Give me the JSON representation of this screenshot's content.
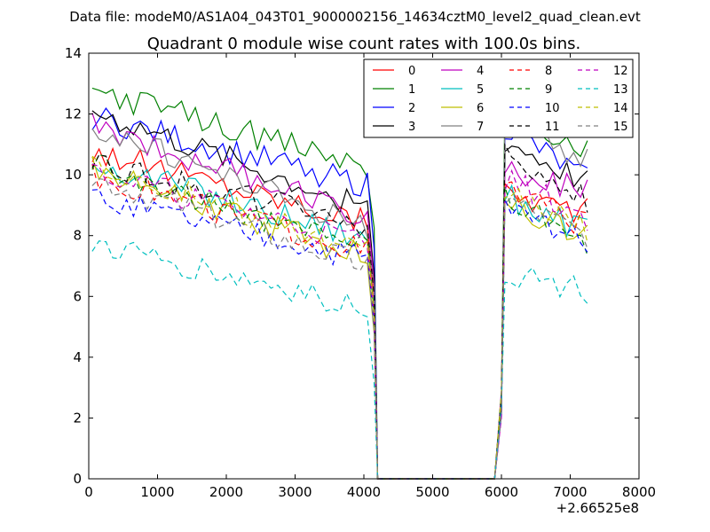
{
  "chart_data": {
    "type": "line",
    "suptitle": "Data file: modeM0/AS1A04_043T01_9000002156_14634cztM0_level2_quad_clean.evt",
    "title": "Quadrant 0 module wise count rates with 100.0s bins.",
    "xlabel": "",
    "ylabel": "",
    "xlim": [
      0,
      8000
    ],
    "ylim": [
      0,
      14
    ],
    "x_offset_label": "+2.66525e8",
    "xticks": [
      0,
      1000,
      2000,
      3000,
      4000,
      5000,
      6000,
      7000,
      8000
    ],
    "yticks": [
      0,
      2,
      4,
      6,
      8,
      10,
      12,
      14
    ],
    "grid": false,
    "legend_location": "top-right",
    "legend_columns": 4,
    "gap": [
      4200,
      5900
    ],
    "series": [
      {
        "name": "0",
        "color": "#ff0000",
        "dash": "solid",
        "level": 10.8,
        "drop": 2.4,
        "post": 9.4,
        "postSlope": -0.6
      },
      {
        "name": "1",
        "color": "#008000",
        "dash": "solid",
        "level": 12.8,
        "drop": 2.6,
        "post": 12.0,
        "postSlope": -1.3
      },
      {
        "name": "2",
        "color": "#0000ff",
        "dash": "solid",
        "level": 11.9,
        "drop": 2.3,
        "post": 11.6,
        "postSlope": -1.8
      },
      {
        "name": "3",
        "color": "#000000",
        "dash": "solid",
        "level": 12.1,
        "drop": 3.3,
        "post": 11.1,
        "postSlope": -1.4
      },
      {
        "name": "4",
        "color": "#bf00bf",
        "dash": "solid",
        "level": 11.6,
        "drop": 3.0,
        "post": 10.3,
        "postSlope": -0.9
      },
      {
        "name": "5",
        "color": "#00bfbf",
        "dash": "solid",
        "level": 10.4,
        "drop": 2.6,
        "post": 9.3,
        "postSlope": -1.2
      },
      {
        "name": "6",
        "color": "#bfbf00",
        "dash": "solid",
        "level": 10.2,
        "drop": 3.0,
        "post": 9.2,
        "postSlope": -1.3
      },
      {
        "name": "7",
        "color": "#808080",
        "dash": "solid",
        "level": 11.6,
        "drop": 3.4,
        "post": 11.6,
        "postSlope": -1.2
      },
      {
        "name": "8",
        "color": "#ff0000",
        "dash": "dashed",
        "level": 10.0,
        "drop": 2.6,
        "post": 9.6,
        "postSlope": -1.3
      },
      {
        "name": "9",
        "color": "#008000",
        "dash": "dashed",
        "level": 10.3,
        "drop": 2.8,
        "post": 9.4,
        "postSlope": -1.6
      },
      {
        "name": "10",
        "color": "#0000ff",
        "dash": "dashed",
        "level": 9.2,
        "drop": 2.0,
        "post": 8.9,
        "postSlope": -1.0
      },
      {
        "name": "11",
        "color": "#000000",
        "dash": "dashed",
        "level": 10.4,
        "drop": 2.1,
        "post": 10.6,
        "postSlope": -1.4
      },
      {
        "name": "12",
        "color": "#bf00bf",
        "dash": "dashed",
        "level": 10.1,
        "drop": 2.4,
        "post": 9.9,
        "postSlope": -1.3
      },
      {
        "name": "13",
        "color": "#00bfbf",
        "dash": "dashed",
        "level": 7.7,
        "drop": 2.1,
        "post": 6.8,
        "postSlope": -0.6
      },
      {
        "name": "14",
        "color": "#bfbf00",
        "dash": "dashed",
        "level": 10.4,
        "drop": 3.1,
        "post": 9.5,
        "postSlope": -1.3
      },
      {
        "name": "15",
        "color": "#808080",
        "dash": "dashed",
        "level": 9.9,
        "drop": 3.0,
        "post": 9.2,
        "postSlope": -1.2
      }
    ]
  }
}
